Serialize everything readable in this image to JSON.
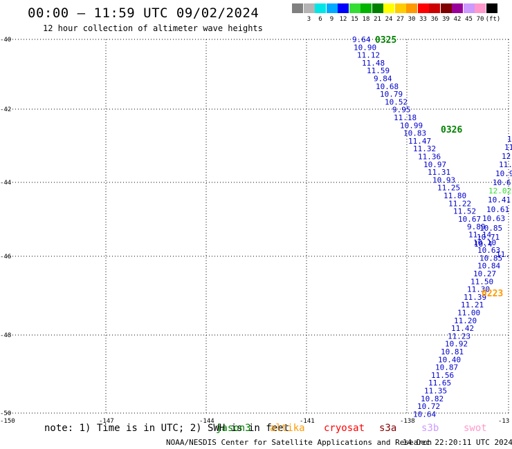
{
  "header": {
    "title": "00:00 – 11:59 UTC 09/02/2024",
    "subtitle": "12 hour collection of altimeter wave heights"
  },
  "legend": {
    "unit": "(ft)",
    "swatches": [
      {
        "color": "#808080",
        "label": ""
      },
      {
        "color": "#b4b4b4",
        "label": "3"
      },
      {
        "color": "#00e6e6",
        "label": "6"
      },
      {
        "color": "#00aaff",
        "label": "9"
      },
      {
        "color": "#0000ff",
        "label": "12"
      },
      {
        "color": "#33dd33",
        "label": "15"
      },
      {
        "color": "#00b400",
        "label": "18"
      },
      {
        "color": "#008000",
        "label": "21"
      },
      {
        "color": "#ffff00",
        "label": "24"
      },
      {
        "color": "#ffcc00",
        "label": "27"
      },
      {
        "color": "#ff9900",
        "label": "30"
      },
      {
        "color": "#ff0000",
        "label": "33"
      },
      {
        "color": "#cc0000",
        "label": "36"
      },
      {
        "color": "#800000",
        "label": "39"
      },
      {
        "color": "#990099",
        "label": "42"
      },
      {
        "color": "#cc99ff",
        "label": "45"
      },
      {
        "color": "#ff99cc",
        "label": "70"
      },
      {
        "color": "#000000",
        "label": ""
      }
    ]
  },
  "axes": {
    "lat_labels": [
      "-40",
      "-42",
      "-44",
      "-46",
      "-48",
      "-50"
    ],
    "lon_labels": [
      "-150",
      "-147",
      "-144",
      "-141",
      "-138",
      "-13"
    ]
  },
  "tracks": [
    {
      "name": "west",
      "values": [
        "9.64",
        "10.90",
        "11.12",
        "11.48",
        "11.59",
        "9.84",
        "10.68",
        "10.79",
        "10.52",
        "9.95",
        "11.18",
        "10.99",
        "10.83",
        "11.47",
        "11.32",
        "11.36",
        "10.97",
        "11.31",
        "10.93",
        "11.25",
        "11.80",
        "11.22",
        "11.52",
        "10.67",
        "9.89",
        "11.14",
        "10.10",
        "10.63",
        "10.85",
        "10.84",
        "10.27",
        "11.50",
        "11.30",
        "11.39",
        "11.21",
        "11.00",
        "11.20",
        "11.42",
        "11.23",
        "10.92",
        "10.81",
        "10.40",
        "10.87",
        "11.56",
        "11.65",
        "11.35",
        "10.82",
        "10.72",
        "10.64"
      ]
    },
    {
      "name": "east",
      "values": [
        "1",
        "11",
        "12.",
        "11.5",
        "10.9",
        "10.61",
        "12.02",
        "10.41",
        "10.61",
        "10.63",
        "10.85",
        "10.71",
        "10.4",
        "11.",
        ""
      ]
    }
  ],
  "time_tags": [
    {
      "text": "0325",
      "color": "#008000"
    },
    {
      "text": "0326",
      "color": "#008000"
    },
    {
      "text": "0223",
      "color": "#ff9900"
    }
  ],
  "footer": {
    "note": "note: 1) Time is in UTC; 2) SWH is in feet",
    "satellites": [
      {
        "name": "jason3",
        "color": "#008000"
      },
      {
        "name": "altika",
        "color": "#ff9900"
      },
      {
        "name": "cryosat",
        "color": "#ff0000"
      },
      {
        "name": "s3a",
        "color": "#800000"
      },
      {
        "name": "s3b",
        "color": "#cc99ff"
      },
      {
        "name": "swot",
        "color": "#ff99cc"
      }
    ],
    "credit": "NOAA/NESDIS Center for Satellite Applications and Research",
    "stamp": "14 Dec 22:20:11 UTC 2024"
  },
  "colors": {
    "wave_text": "#0000cc",
    "highlight_value": "#33dd33",
    "grid": "#000000"
  }
}
